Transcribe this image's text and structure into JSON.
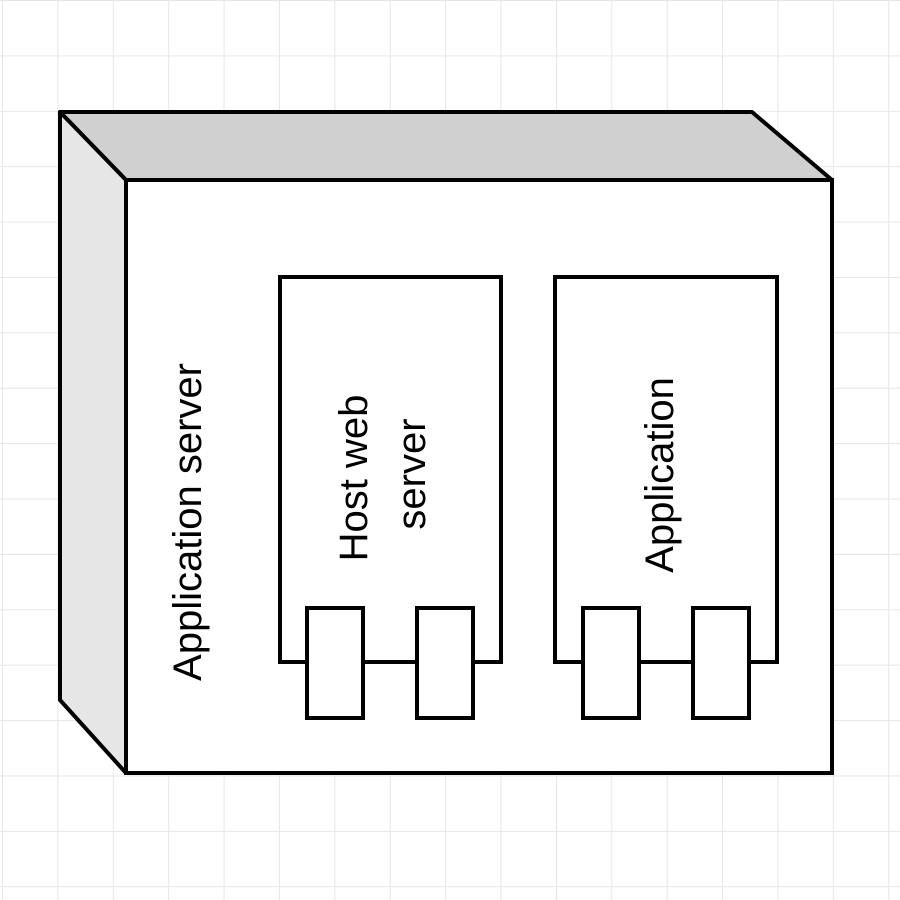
{
  "diagram": {
    "node": {
      "label": "Application server",
      "top_face_color": "#d0d0d0",
      "side_face_color": "#e6e6e6",
      "front_face_color": "#ffffff"
    },
    "components": [
      {
        "label_lines": [
          "Host web",
          "server"
        ],
        "ports": 2
      },
      {
        "label_lines": [
          "Application"
        ],
        "ports": 2
      }
    ],
    "grid": true,
    "stroke_color": "#000000"
  }
}
